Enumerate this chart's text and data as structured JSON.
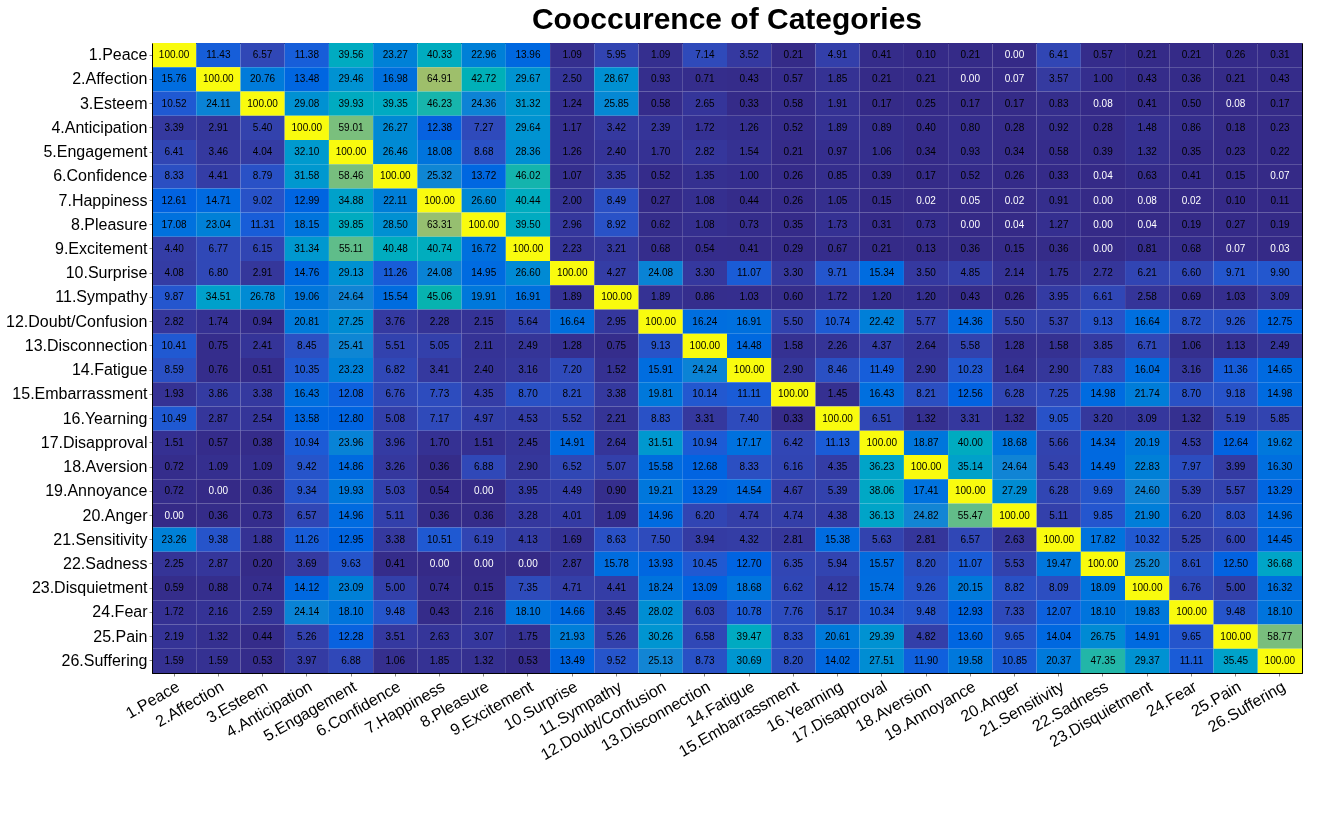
{
  "chart_data": {
    "type": "heatmap",
    "title": "Cooccurence of Categories",
    "data_labels": true,
    "categories": [
      "1.Peace",
      "2.Affection",
      "3.Esteem",
      "4.Anticipation",
      "5.Engagement",
      "6.Confidence",
      "7.Happiness",
      "8.Pleasure",
      "9.Excitement",
      "10.Surprise",
      "11.Sympathy",
      "12.Doubt/Confusion",
      "13.Disconnection",
      "14.Fatigue",
      "15.Embarrassment",
      "16.Yearning",
      "17.Disapproval",
      "18.Aversion",
      "19.Annoyance",
      "20.Anger",
      "21.Sensitivity",
      "22.Sadness",
      "23.Disquietment",
      "24.Fear",
      "25.Pain",
      "26.Suffering"
    ],
    "y_categories": [
      "1.Peace",
      "2.Affection",
      "3.Esteem",
      "4.Anticipation",
      "5.Engagement",
      "6.Confidence",
      "7.Happiness",
      "8.Pleasure",
      "9.Excitement",
      "10.Surprise",
      "11.Sympathy",
      "12.Doubt/Confusion",
      "13.Disconnection",
      "14.Fatigue",
      "15.Embarrassment",
      "16.Yearning",
      "17.Disapproval",
      "18.Aversion",
      "19.Annoyance",
      "20.Anger",
      "21.Sensitivity",
      "22.Sadness",
      "23.Disquietment",
      "24.Fear",
      "25.Pain",
      "26.Suffering"
    ],
    "cells": [
      [
        100.0,
        11.43,
        6.57,
        11.38,
        39.56,
        23.27,
        40.33,
        22.96,
        13.96,
        1.09,
        5.95,
        1.09,
        7.14,
        3.52,
        0.21,
        4.91,
        0.41,
        0.1,
        0.21,
        0.0,
        6.41,
        0.57,
        0.21,
        0.21,
        0.26,
        0.31
      ],
      [
        15.76,
        100.0,
        20.76,
        13.48,
        29.46,
        16.98,
        64.91,
        42.72,
        29.67,
        2.5,
        28.67,
        0.93,
        0.71,
        0.43,
        0.57,
        1.85,
        0.21,
        0.21,
        0.0,
        0.07,
        3.57,
        1.0,
        0.43,
        0.36,
        0.21,
        0.43
      ],
      [
        10.52,
        24.11,
        100.0,
        29.08,
        39.93,
        39.35,
        46.23,
        24.36,
        31.32,
        1.24,
        25.85,
        0.58,
        2.65,
        0.33,
        0.58,
        1.91,
        0.17,
        0.25,
        0.17,
        0.17,
        0.83,
        0.08,
        0.41,
        0.5,
        0.08,
        0.17
      ],
      [
        3.39,
        2.91,
        5.4,
        100.0,
        59.01,
        26.27,
        12.38,
        7.27,
        29.64,
        1.17,
        3.42,
        2.39,
        1.72,
        1.26,
        0.52,
        1.89,
        0.89,
        0.4,
        0.8,
        0.28,
        0.92,
        0.28,
        1.48,
        0.86,
        0.18,
        0.23
      ],
      [
        6.41,
        3.46,
        4.04,
        32.1,
        100.0,
        26.46,
        18.08,
        8.68,
        28.36,
        1.26,
        2.4,
        1.7,
        2.82,
        1.54,
        0.21,
        0.97,
        1.06,
        0.34,
        0.93,
        0.34,
        0.58,
        0.39,
        1.32,
        0.35,
        0.23,
        0.22
      ],
      [
        8.33,
        4.41,
        8.79,
        31.58,
        58.46,
        100.0,
        25.32,
        13.72,
        46.02,
        1.07,
        3.35,
        0.52,
        1.35,
        1.0,
        0.26,
        0.85,
        0.39,
        0.17,
        0.52,
        0.26,
        0.33,
        0.04,
        0.63,
        0.41,
        0.15,
        0.07
      ],
      [
        12.61,
        14.71,
        9.02,
        12.99,
        34.88,
        22.11,
        100.0,
        26.6,
        40.44,
        2.0,
        8.49,
        0.27,
        1.08,
        0.44,
        0.26,
        1.05,
        0.15,
        0.02,
        0.05,
        0.02,
        0.91,
        0.0,
        0.08,
        0.02,
        0.1,
        0.11
      ],
      [
        17.08,
        23.04,
        11.31,
        18.15,
        39.85,
        28.5,
        63.31,
        100.0,
        39.5,
        2.96,
        8.92,
        0.62,
        1.08,
        0.73,
        0.35,
        1.73,
        0.31,
        0.73,
        0.0,
        0.04,
        1.27,
        0.0,
        0.04,
        0.19,
        0.27,
        0.19
      ],
      [
        4.4,
        6.77,
        6.15,
        31.34,
        55.11,
        40.48,
        40.74,
        16.72,
        100.0,
        2.23,
        3.21,
        0.68,
        0.54,
        0.41,
        0.29,
        0.67,
        0.21,
        0.13,
        0.36,
        0.15,
        0.36,
        0.0,
        0.81,
        0.68,
        0.07,
        0.03
      ],
      [
        4.08,
        6.8,
        2.91,
        14.76,
        29.13,
        11.26,
        24.08,
        14.95,
        26.6,
        100.0,
        4.27,
        24.08,
        3.3,
        11.07,
        3.3,
        9.71,
        15.34,
        3.5,
        4.85,
        2.14,
        1.75,
        2.72,
        6.21,
        6.6,
        9.71,
        9.9
      ],
      [
        9.87,
        34.51,
        26.78,
        19.06,
        24.64,
        15.54,
        45.06,
        19.91,
        16.91,
        1.89,
        100.0,
        1.89,
        0.86,
        1.03,
        0.6,
        1.72,
        1.2,
        1.2,
        0.43,
        0.26,
        3.95,
        6.61,
        2.58,
        0.69,
        1.03,
        3.09
      ],
      [
        2.82,
        1.74,
        0.94,
        20.81,
        27.25,
        3.76,
        2.28,
        2.15,
        5.64,
        16.64,
        2.95,
        100.0,
        16.24,
        16.91,
        5.5,
        10.74,
        22.42,
        5.77,
        14.36,
        5.5,
        5.37,
        9.13,
        16.64,
        8.72,
        9.26,
        12.75
      ],
      [
        10.41,
        0.75,
        2.41,
        8.45,
        25.41,
        5.51,
        5.05,
        2.11,
        2.49,
        1.28,
        0.75,
        9.13,
        100.0,
        14.48,
        1.58,
        2.26,
        4.37,
        2.64,
        5.58,
        1.28,
        1.58,
        3.85,
        6.71,
        1.06,
        1.13,
        2.49
      ],
      [
        8.59,
        0.76,
        0.51,
        10.35,
        23.23,
        6.82,
        3.41,
        2.4,
        3.16,
        7.2,
        1.52,
        15.91,
        24.24,
        100.0,
        2.9,
        8.46,
        11.49,
        2.9,
        10.23,
        1.64,
        2.9,
        7.83,
        16.04,
        3.16,
        11.36,
        14.65
      ],
      [
        1.93,
        3.86,
        3.38,
        16.43,
        12.08,
        6.76,
        7.73,
        4.35,
        8.7,
        8.21,
        3.38,
        19.81,
        10.14,
        11.11,
        100.0,
        1.45,
        16.43,
        8.21,
        12.56,
        6.28,
        7.25,
        14.98,
        21.74,
        8.7,
        9.18,
        14.98
      ],
      [
        10.49,
        2.87,
        2.54,
        13.58,
        12.8,
        5.08,
        7.17,
        4.97,
        4.53,
        5.52,
        2.21,
        8.83,
        3.31,
        7.4,
        0.33,
        100.0,
        6.51,
        1.32,
        3.31,
        1.32,
        9.05,
        3.2,
        3.09,
        1.32,
        5.19,
        5.85
      ],
      [
        1.51,
        0.57,
        0.38,
        10.94,
        23.96,
        3.96,
        1.7,
        1.51,
        2.45,
        14.91,
        2.64,
        31.51,
        10.94,
        17.17,
        6.42,
        11.13,
        100.0,
        18.87,
        40.0,
        18.68,
        5.66,
        14.34,
        20.19,
        4.53,
        12.64,
        19.62
      ],
      [
        0.72,
        1.09,
        1.09,
        9.42,
        14.86,
        3.26,
        0.36,
        6.88,
        2.9,
        6.52,
        5.07,
        15.58,
        12.68,
        8.33,
        6.16,
        4.35,
        36.23,
        100.0,
        35.14,
        24.64,
        5.43,
        14.49,
        22.83,
        7.97,
        3.99,
        16.3
      ],
      [
        0.72,
        0.0,
        0.36,
        9.34,
        19.93,
        5.03,
        0.54,
        0.0,
        3.95,
        4.49,
        0.9,
        19.21,
        13.29,
        14.54,
        4.67,
        5.39,
        38.06,
        17.41,
        100.0,
        27.29,
        6.28,
        9.69,
        24.6,
        5.39,
        5.57,
        13.29
      ],
      [
        0.0,
        0.36,
        0.73,
        6.57,
        14.96,
        5.11,
        0.36,
        0.36,
        3.28,
        4.01,
        1.09,
        14.96,
        6.2,
        4.74,
        4.74,
        4.38,
        36.13,
        24.82,
        55.47,
        100.0,
        5.11,
        9.85,
        21.9,
        6.2,
        8.03,
        14.96
      ],
      [
        23.26,
        9.38,
        1.88,
        11.26,
        12.95,
        3.38,
        10.51,
        6.19,
        4.13,
        1.69,
        8.63,
        7.5,
        3.94,
        4.32,
        2.81,
        15.38,
        5.63,
        2.81,
        6.57,
        2.63,
        100.0,
        17.82,
        10.32,
        5.25,
        6.0,
        14.45
      ],
      [
        2.25,
        2.87,
        0.2,
        3.69,
        9.63,
        0.41,
        0.0,
        0.0,
        0.0,
        2.87,
        15.78,
        13.93,
        10.45,
        12.7,
        6.35,
        5.94,
        15.57,
        8.2,
        11.07,
        5.53,
        19.47,
        100.0,
        25.2,
        8.61,
        12.5,
        36.68
      ],
      [
        0.59,
        0.88,
        0.74,
        14.12,
        23.09,
        5.0,
        0.74,
        0.15,
        7.35,
        4.71,
        4.41,
        18.24,
        13.09,
        18.68,
        6.62,
        4.12,
        15.74,
        9.26,
        20.15,
        8.82,
        8.09,
        18.09,
        100.0,
        6.76,
        5.0,
        16.32
      ],
      [
        1.72,
        2.16,
        2.59,
        24.14,
        18.1,
        9.48,
        0.43,
        2.16,
        18.1,
        14.66,
        3.45,
        28.02,
        6.03,
        10.78,
        7.76,
        5.17,
        10.34,
        9.48,
        12.93,
        7.33,
        12.07,
        18.1,
        19.83,
        100.0,
        9.48,
        18.1
      ],
      [
        2.19,
        1.32,
        0.44,
        5.26,
        12.28,
        3.51,
        2.63,
        3.07,
        1.75,
        21.93,
        5.26,
        30.26,
        6.58,
        39.47,
        8.33,
        20.61,
        29.39,
        4.82,
        13.6,
        9.65,
        14.04,
        26.75,
        14.91,
        9.65,
        100.0,
        58.77
      ],
      [
        1.59,
        1.59,
        0.53,
        3.97,
        6.88,
        1.06,
        1.85,
        1.32,
        0.53,
        13.49,
        9.52,
        25.13,
        8.73,
        30.69,
        8.2,
        14.02,
        27.51,
        11.9,
        19.58,
        10.85,
        20.37,
        47.35,
        29.37,
        11.11,
        35.45,
        100.0
      ]
    ],
    "cell_labels": [
      [
        "100.00",
        "11.43",
        "6.57",
        "11.38",
        "39.56",
        "23.27",
        "40.33",
        "22.96",
        "13.96",
        "1.09",
        "5.95",
        "1.09",
        "7.14",
        "3.52",
        "0.21",
        "4.91",
        "0.41",
        "0.10",
        "0.21",
        "0.00",
        "6.41",
        "0.57",
        "0.21",
        "0.21",
        "0.26",
        "0.31"
      ],
      [
        "15.76",
        "100.00",
        "20.76",
        "13.48",
        "29.46",
        "16.98",
        "64.91",
        "42.72",
        "29.67",
        "2.50",
        "28.67",
        "0.93",
        "0.71",
        "0.43",
        "0.57",
        "1.85",
        "0.21",
        "0.21",
        "0.00",
        "0.07",
        "3.57",
        "1.00",
        "0.43",
        "0.36",
        "0.21",
        "0.43"
      ],
      [
        "10.52",
        "24.11",
        "100.00",
        "29.08",
        "39.93",
        "39.35",
        "46.23",
        "24.36",
        "31.32",
        "1.24",
        "25.85",
        "0.58",
        "2.65",
        "0.33",
        "0.58",
        "1.91",
        "0.17",
        "0.25",
        "0.17",
        "0.17",
        "0.83",
        "0.08",
        "0.41",
        "0.50",
        "0.08",
        "0.17"
      ],
      [
        "3.39",
        "2.91",
        "5.40",
        "100.00",
        "59.01",
        "26.27",
        "12.38",
        "7.27",
        "29.64",
        "1.17",
        "3.42",
        "2.39",
        "1.72",
        "1.26",
        "0.52",
        "1.89",
        "0.89",
        "0.40",
        "0.80",
        "0.28",
        "0.92",
        "0.28",
        "1.48",
        "0.86",
        "0.18",
        "0.23"
      ],
      [
        "6.41",
        "3.46",
        "4.04",
        "32.10",
        "100.00",
        "26.46",
        "18.08",
        "8.68",
        "28.36",
        "1.26",
        "2.40",
        "1.70",
        "2.82",
        "1.54",
        "0.21",
        "0.97",
        "1.06",
        "0.34",
        "0.93",
        "0.34",
        "0.58",
        "0.39",
        "1.32",
        "0.35",
        "0.23",
        "0.22"
      ],
      [
        "8.33",
        "4.41",
        "8.79",
        "31.58",
        "58.46",
        "100.00",
        "25.32",
        "13.72",
        "46.02",
        "1.07",
        "3.35",
        "0.52",
        "1.35",
        "1.00",
        "0.26",
        "0.85",
        "0.39",
        "0.17",
        "0.52",
        "0.26",
        "0.33",
        "0.04",
        "0.63",
        "0.41",
        "0.15",
        "0.07"
      ],
      [
        "12.61",
        "14.71",
        "9.02",
        "12.99",
        "34.88",
        "22.11",
        "100.00",
        "26.60",
        "40.44",
        "2.00",
        "8.49",
        "0.27",
        "1.08",
        "0.44",
        "0.26",
        "1.05",
        "0.15",
        "0.02",
        "0.05",
        "0.02",
        "0.91",
        "0.00",
        "0.08",
        "0.02",
        "0.10",
        "0.11"
      ],
      [
        "17.08",
        "23.04",
        "11.31",
        "18.15",
        "39.85",
        "28.50",
        "63.31",
        "100.00",
        "39.50",
        "2.96",
        "8.92",
        "0.62",
        "1.08",
        "0.73",
        "0.35",
        "1.73",
        "0.31",
        "0.73",
        "0.00",
        "0.04",
        "1.27",
        "0.00",
        "0.04",
        "0.19",
        "0.27",
        "0.19"
      ],
      [
        "4.40",
        "6.77",
        "6.15",
        "31.34",
        "55.11",
        "40.48",
        "40.74",
        "16.72",
        "100.00",
        "2.23",
        "3.21",
        "0.68",
        "0.54",
        "0.41",
        "0.29",
        "0.67",
        "0.21",
        "0.13",
        "0.36",
        "0.15",
        "0.36",
        "0.00",
        "0.81",
        "0.68",
        "0.07",
        "0.03"
      ],
      [
        "4.08",
        "6.80",
        "2.91",
        "14.76",
        "29.13",
        "11.26",
        "24.08",
        "14.95",
        "26.60",
        "100.00",
        "4.27",
        "24.08",
        "3.30",
        "11.07",
        "3.30",
        "9.71",
        "15.34",
        "3.50",
        "4.85",
        "2.14",
        "1.75",
        "2.72",
        "6.21",
        "6.60",
        "9.71",
        "9.90"
      ],
      [
        "9.87",
        "34.51",
        "26.78",
        "19.06",
        "24.64",
        "15.54",
        "45.06",
        "19.91",
        "16.91",
        "1.89",
        "100.00",
        "1.89",
        "0.86",
        "1.03",
        "0.60",
        "1.72",
        "1.20",
        "1.20",
        "0.43",
        "0.26",
        "3.95",
        "6.61",
        "2.58",
        "0.69",
        "1.03",
        "3.09"
      ],
      [
        "2.82",
        "1.74",
        "0.94",
        "20.81",
        "27.25",
        "3.76",
        "2.28",
        "2.15",
        "5.64",
        "16.64",
        "2.95",
        "100.00",
        "16.24",
        "16.91",
        "5.50",
        "10.74",
        "22.42",
        "5.77",
        "14.36",
        "5.50",
        "5.37",
        "9.13",
        "16.64",
        "8.72",
        "9.26",
        "12.75"
      ],
      [
        "10.41",
        "0.75",
        "2.41",
        "8.45",
        "25.41",
        "5.51",
        "5.05",
        "2.11",
        "2.49",
        "1.28",
        "0.75",
        "9.13",
        "100.00",
        "14.48",
        "1.58",
        "2.26",
        "4.37",
        "2.64",
        "5.58",
        "1.28",
        "1.58",
        "3.85",
        "6.71",
        "1.06",
        "1.13",
        "2.49"
      ],
      [
        "8.59",
        "0.76",
        "0.51",
        "10.35",
        "23.23",
        "6.82",
        "3.41",
        "2.40",
        "3.16",
        "7.20",
        "1.52",
        "15.91",
        "24.24",
        "100.00",
        "2.90",
        "8.46",
        "11.49",
        "2.90",
        "10.23",
        "1.64",
        "2.90",
        "7.83",
        "16.04",
        "3.16",
        "11.36",
        "14.65"
      ],
      [
        "1.93",
        "3.86",
        "3.38",
        "16.43",
        "12.08",
        "6.76",
        "7.73",
        "4.35",
        "8.70",
        "8.21",
        "3.38",
        "19.81",
        "10.14",
        "11.11",
        "100.00",
        "1.45",
        "16.43",
        "8.21",
        "12.56",
        "6.28",
        "7.25",
        "14.98",
        "21.74",
        "8.70",
        "9.18",
        "14.98"
      ],
      [
        "10.49",
        "2.87",
        "2.54",
        "13.58",
        "12.80",
        "5.08",
        "7.17",
        "4.97",
        "4.53",
        "5.52",
        "2.21",
        "8.83",
        "3.31",
        "7.40",
        "0.33",
        "100.00",
        "6.51",
        "1.32",
        "3.31",
        "1.32",
        "9.05",
        "3.20",
        "3.09",
        "1.32",
        "5.19",
        "5.85"
      ],
      [
        "1.51",
        "0.57",
        "0.38",
        "10.94",
        "23.96",
        "3.96",
        "1.70",
        "1.51",
        "2.45",
        "14.91",
        "2.64",
        "31.51",
        "10.94",
        "17.17",
        "6.42",
        "11.13",
        "100.00",
        "18.87",
        "40.00",
        "18.68",
        "5.66",
        "14.34",
        "20.19",
        "4.53",
        "12.64",
        "19.62"
      ],
      [
        "0.72",
        "1.09",
        "1.09",
        "9.42",
        "14.86",
        "3.26",
        "0.36",
        "6.88",
        "2.90",
        "6.52",
        "5.07",
        "15.58",
        "12.68",
        "8.33",
        "6.16",
        "4.35",
        "36.23",
        "100.00",
        "35.14",
        "24.64",
        "5.43",
        "14.49",
        "22.83",
        "7.97",
        "3.99",
        "16.30"
      ],
      [
        "0.72",
        "0.00",
        "0.36",
        "9.34",
        "19.93",
        "5.03",
        "0.54",
        "0.00",
        "3.95",
        "4.49",
        "0.90",
        "19.21",
        "13.29",
        "14.54",
        "4.67",
        "5.39",
        "38.06",
        "17.41",
        "100.00",
        "27.29",
        "6.28",
        "9.69",
        "24.60",
        "5.39",
        "5.57",
        "13.29"
      ],
      [
        "0.00",
        "0.36",
        "0.73",
        "6.57",
        "14.96",
        "5.11",
        "0.36",
        "0.36",
        "3.28",
        "4.01",
        "1.09",
        "14.96",
        "6.20",
        "4.74",
        "4.74",
        "4.38",
        "36.13",
        "24.82",
        "55.47",
        "100.00",
        "5.11",
        "9.85",
        "21.90",
        "6.20",
        "8.03",
        "14.96"
      ],
      [
        "23.26",
        "9.38",
        "1.88",
        "11.26",
        "12.95",
        "3.38",
        "10.51",
        "6.19",
        "4.13",
        "1.69",
        "8.63",
        "7.50",
        "3.94",
        "4.32",
        "2.81",
        "15.38",
        "5.63",
        "2.81",
        "6.57",
        "2.63",
        "100.00",
        "17.82",
        "10.32",
        "5.25",
        "6.00",
        "14.45"
      ],
      [
        "2.25",
        "2.87",
        "0.20",
        "3.69",
        "9.63",
        "0.41",
        "0.00",
        "0.00",
        "0.00",
        "2.87",
        "15.78",
        "13.93",
        "10.45",
        "12.70",
        "6.35",
        "5.94",
        "15.57",
        "8.20",
        "11.07",
        "5.53",
        "19.47",
        "100.00",
        "25.20",
        "8.61",
        "12.50",
        "36.68"
      ],
      [
        "0.59",
        "0.88",
        "0.74",
        "14.12",
        "23.09",
        "5.00",
        "0.74",
        "0.15",
        "7.35",
        "4.71",
        "4.41",
        "18.24",
        "13.09",
        "18.68",
        "6.62",
        "4.12",
        "15.74",
        "9.26",
        "20.15",
        "8.82",
        "8.09",
        "18.09",
        "100.00",
        "6.76",
        "5.00",
        "16.32"
      ],
      [
        "1.72",
        "2.16",
        "2.59",
        "24.14",
        "18.10",
        "9.48",
        "0.43",
        "2.16",
        "18.10",
        "14.66",
        "3.45",
        "28.02",
        "6.03",
        "10.78",
        "7.76",
        "5.17",
        "10.34",
        "9.48",
        "12.93",
        "7.33",
        "12.07",
        "18.10",
        "19.83",
        "100.00",
        "9.48",
        "18.10"
      ],
      [
        "2.19",
        "1.32",
        "0.44",
        "5.26",
        "12.28",
        "3.51",
        "2.63",
        "3.07",
        "1.75",
        "21.93",
        "5.26",
        "30.26",
        "6.58",
        "39.47",
        "8.33",
        "20.61",
        "29.39",
        "4.82",
        "13.60",
        "9.65",
        "14.04",
        "26.75",
        "14.91",
        "9.65",
        "100.00",
        "58.77"
      ],
      [
        "1.59",
        "1.59",
        "0.53",
        "3.97",
        "6.88",
        "1.06",
        "1.85",
        "1.32",
        "0.53",
        "13.49",
        "9.52",
        "25.13",
        "8.73",
        "30.69",
        "8.20",
        "14.02",
        "27.51",
        "11.90",
        "19.58",
        "10.85",
        "20.37",
        "47.35",
        "29.37",
        "11.11",
        "35.45",
        "100.00"
      ]
    ]
  }
}
